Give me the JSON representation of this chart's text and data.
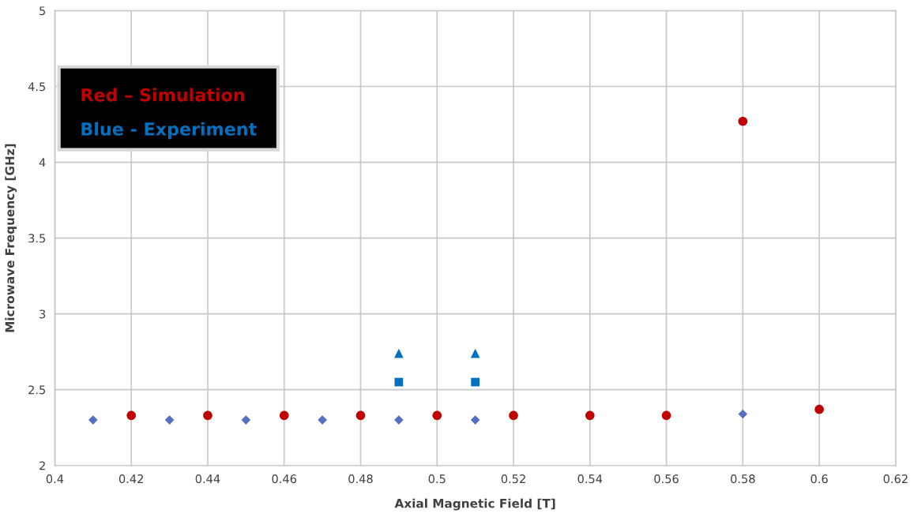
{
  "chart_data": {
    "type": "scatter",
    "xlabel": "Axial Magnetic Field [T]",
    "ylabel": "Microwave Frequency [GHz]",
    "xlim": [
      0.4,
      0.62
    ],
    "xticks": [
      0.4,
      0.42,
      0.44,
      0.46,
      0.48,
      0.5,
      0.52,
      0.54,
      0.56,
      0.58,
      0.6,
      0.62
    ],
    "ylim": [
      2,
      5
    ],
    "yticks": [
      2,
      2.5,
      3,
      3.5,
      4,
      4.5,
      5
    ],
    "grid": true,
    "legend": "top left",
    "series": [
      {
        "name": "Red – Simulation",
        "color": "#c00000",
        "marker": "circle",
        "x": [
          0.42,
          0.44,
          0.46,
          0.48,
          0.5,
          0.52,
          0.54,
          0.56,
          0.58,
          0.6
        ],
        "values": [
          2.33,
          2.33,
          2.33,
          2.33,
          2.33,
          2.33,
          2.33,
          2.33,
          4.27,
          2.37
        ]
      },
      {
        "color": "#5470c0",
        "marker": "diamond",
        "x": [
          0.41,
          0.43,
          0.45,
          0.47,
          0.49,
          0.51,
          0.58
        ],
        "values": [
          2.3,
          2.3,
          2.3,
          2.3,
          2.3,
          2.3,
          2.34
        ]
      },
      {
        "name": "Blue - Experiment",
        "color": "#0070c0",
        "marker": "square",
        "x": [
          0.49,
          0.51
        ],
        "values": [
          2.55,
          2.55
        ]
      },
      {
        "color": "#0070c0",
        "marker": "triangle",
        "x": [
          0.49,
          0.51
        ],
        "values": [
          2.74,
          2.74
        ]
      }
    ]
  }
}
